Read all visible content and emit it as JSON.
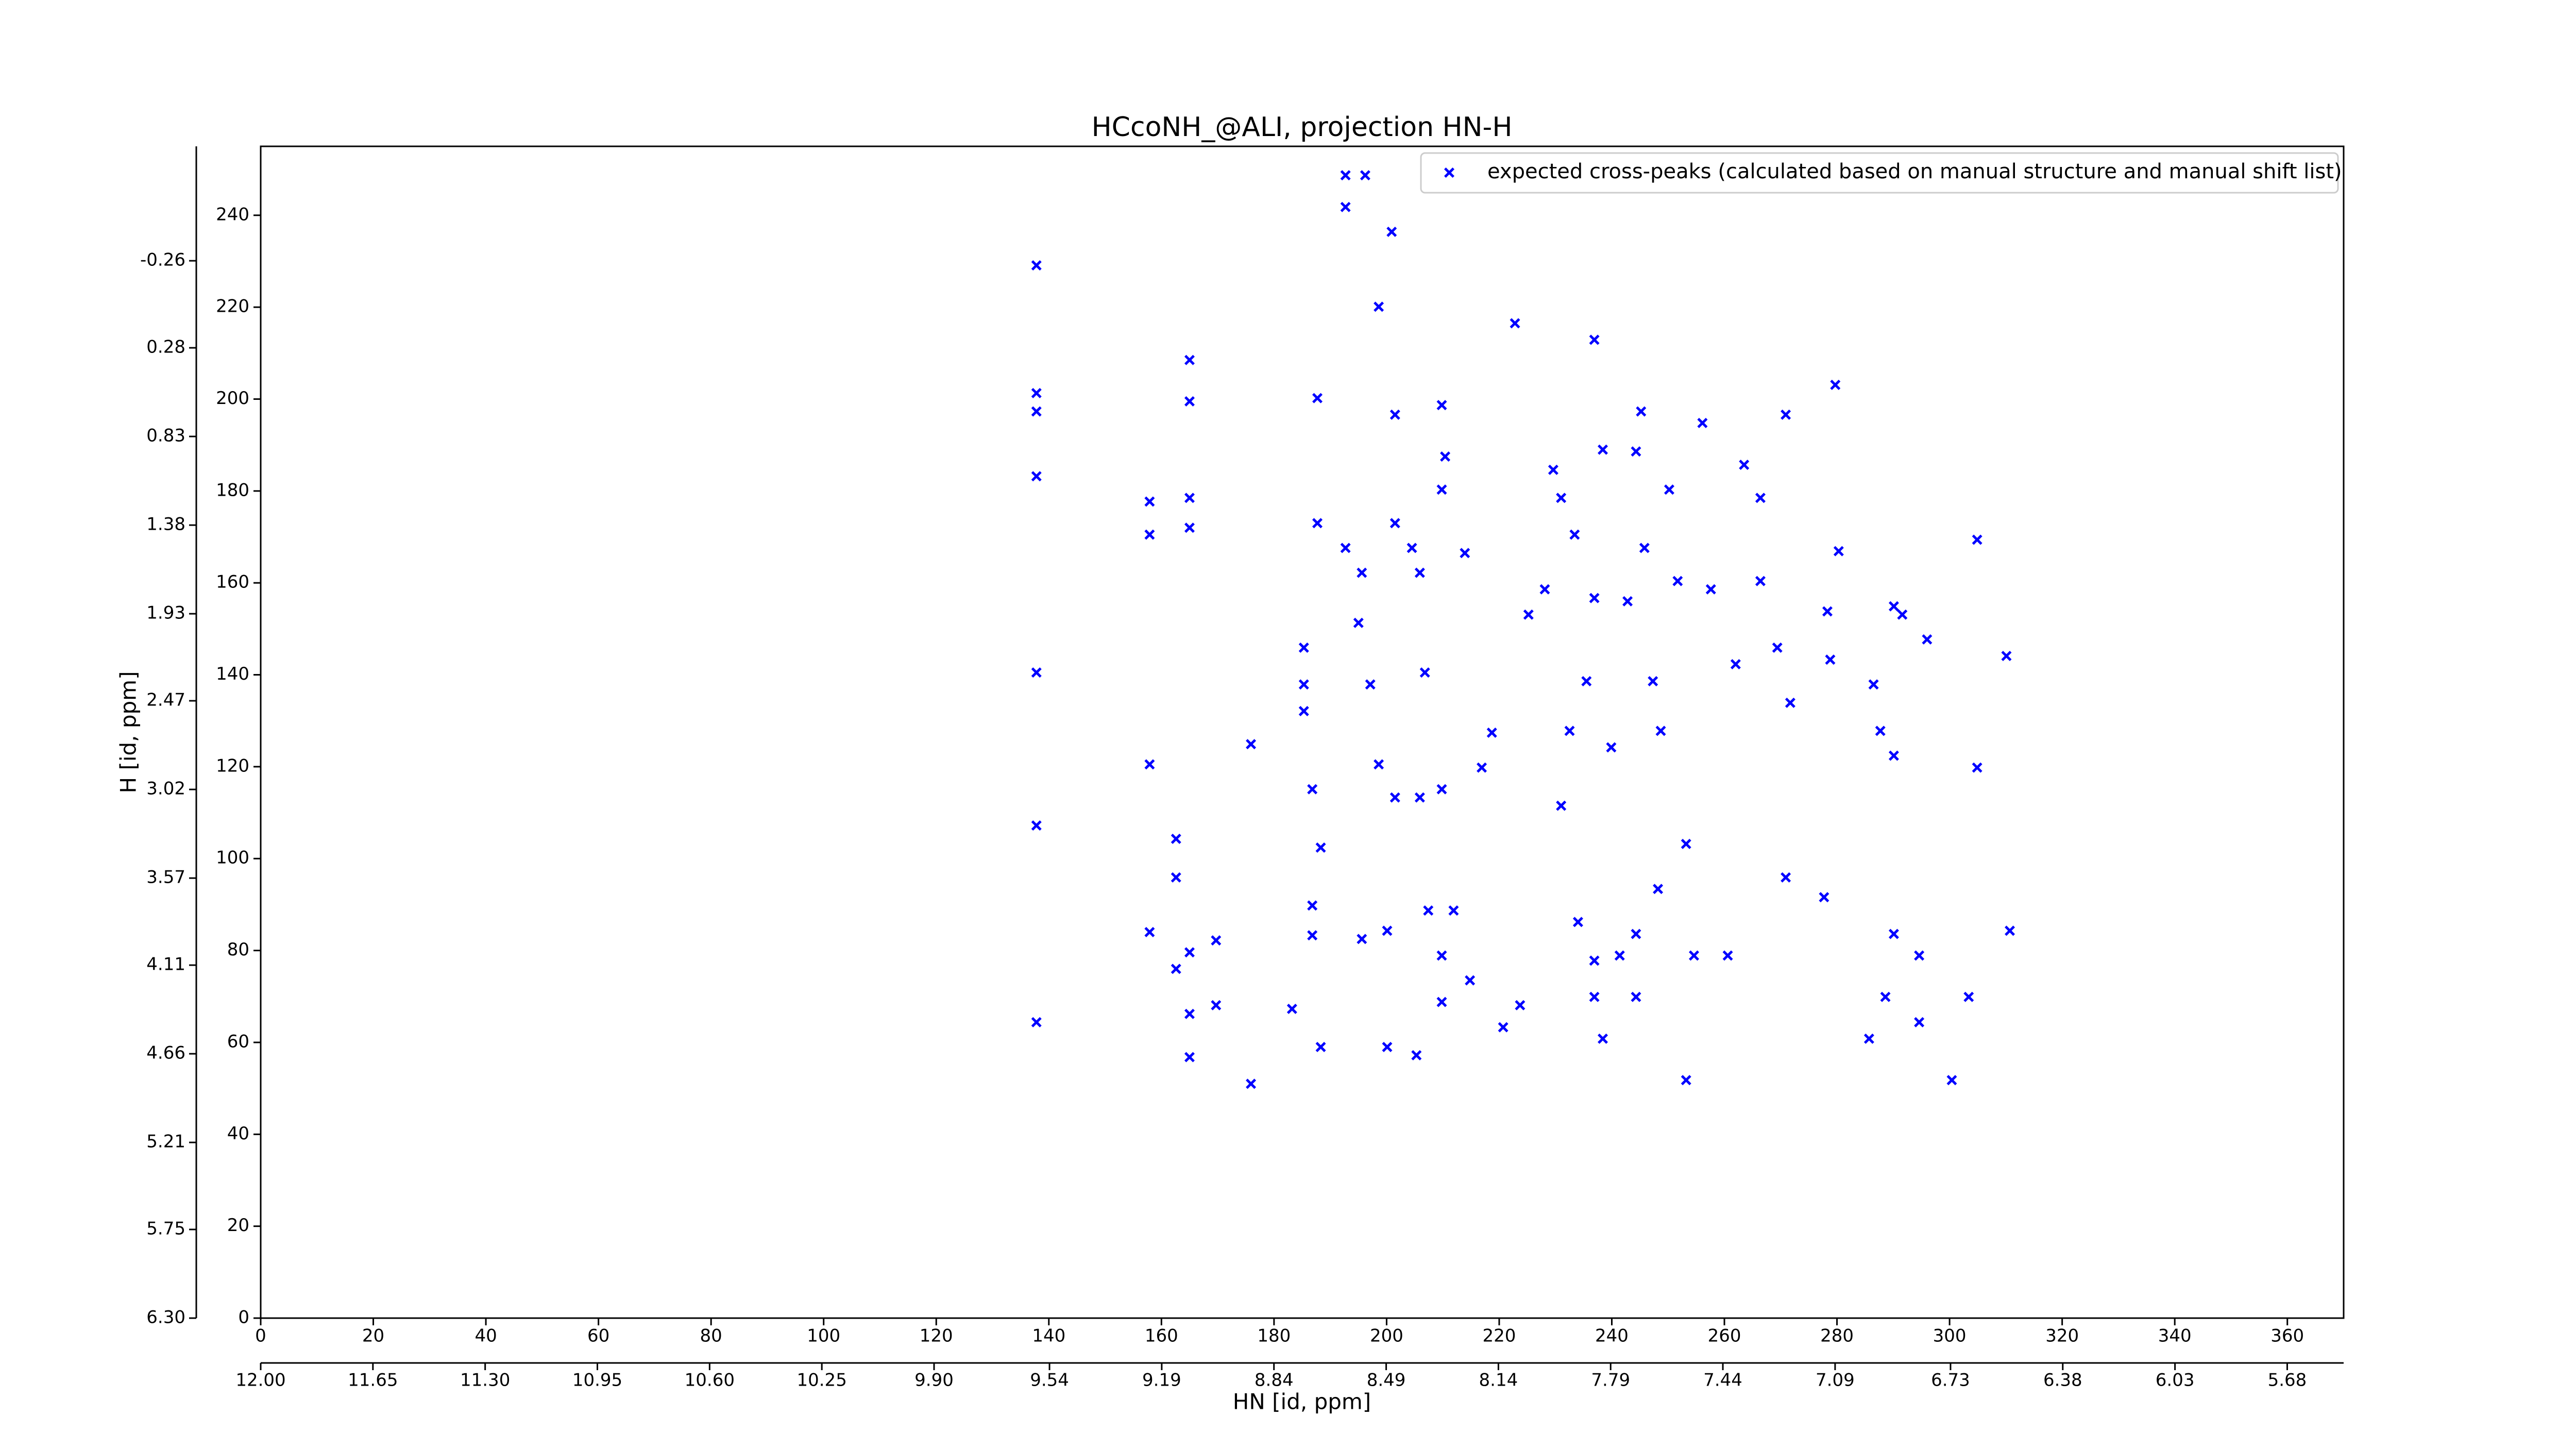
{
  "chart_data": {
    "type": "scatter",
    "title": "HCcoNH_@ALI, projection HN-H",
    "xlabel": "HN [id, ppm]",
    "ylabel": "H [id, ppm]",
    "xlim": [
      0,
      370
    ],
    "ylim": [
      0,
      255
    ],
    "xticks": [
      0,
      20,
      40,
      60,
      80,
      100,
      120,
      140,
      160,
      180,
      200,
      220,
      240,
      260,
      280,
      300,
      320,
      340,
      360
    ],
    "yticks": [
      0,
      20,
      40,
      60,
      80,
      100,
      120,
      140,
      160,
      180,
      200,
      220,
      240
    ],
    "x2lim": [
      12,
      5.504
    ],
    "x2ticks": [
      {
        "value": 12,
        "label": "12.00"
      },
      11.65,
      {
        "value": 11.3,
        "label": "11.30"
      },
      10.95,
      {
        "value": 10.6,
        "label": "10.60"
      },
      10.25,
      {
        "value": 9.9,
        "label": "9.90"
      },
      9.54,
      9.19,
      8.84,
      8.49,
      8.14,
      7.79,
      7.44,
      7.09,
      6.73,
      6.38,
      6.03,
      5.68
    ],
    "y2lim": [
      6.3,
      -0.97
    ],
    "y2ticks": [
      {
        "value": 6.3,
        "label": "6.30"
      },
      5.75,
      5.21,
      4.66,
      4.11,
      3.57,
      3.02,
      2.47,
      1.93,
      1.38,
      0.83,
      0.28,
      -0.26
    ],
    "grid": false,
    "legend": "upper right",
    "series": [
      {
        "name": "expected cross-peaks (calculated based on manual structure and manual shift list)",
        "color": "#0000ff",
        "x": [
          137.8,
          137.8,
          137.8,
          137.8,
          137.8,
          137.8,
          137.8,
          157.9,
          157.9,
          157.9,
          157.9,
          162.6,
          162.6,
          162.6,
          165.0,
          165.0,
          165.0,
          165.0,
          165.0,
          165.0,
          165.0,
          169.7,
          169.7,
          175.9,
          175.9,
          183.2,
          185.3,
          185.3,
          185.3,
          186.8,
          186.8,
          186.8,
          187.7,
          187.7,
          188.3,
          188.3,
          192.7,
          192.7,
          192.7,
          195.0,
          195.6,
          195.6,
          196.2,
          197.1,
          198.6,
          198.6,
          200.1,
          200.9,
          201.5,
          201.5,
          201.5,
          204.5,
          205.9,
          205.9,
          206.8,
          207.4,
          209.8,
          209.8,
          209.8,
          209.8,
          209.8,
          210.4,
          211.9,
          213.9,
          214.8,
          216.9,
          218.7,
          222.8,
          223.7,
          225.2,
          228.1,
          229.6,
          231.0,
          232.5,
          233.4,
          234.0,
          235.5,
          236.9,
          236.9,
          238.4,
          239.9,
          241.4,
          242.8,
          244.3,
          245.2,
          245.8,
          247.3,
          248.2,
          248.7,
          250.2,
          251.7,
          253.2,
          253.2,
          254.6,
          256.1,
          257.6,
          260.6,
          262.0,
          263.5,
          266.4,
          266.4,
          269.4,
          270.9,
          270.9,
          271.7,
          277.7,
          278.3,
          278.8,
          279.7,
          280.3,
          285.7,
          286.5,
          287.7,
          288.6,
          290.1,
          290.1,
          290.1,
          291.6,
          294.6,
          294.6,
          296.0,
          300.4,
          303.4,
          304.9,
          304.9,
          310.1,
          310.7,
          205.3,
          200.1,
          220.7,
          236.9,
          244.3,
          236.9,
          244.3,
          238.4,
          231.0
        ],
        "values": [
          229.1,
          201.3,
          197.3,
          183.2,
          140.5,
          107.2,
          64.4,
          177.7,
          170.5,
          120.5,
          84.0,
          104.3,
          95.9,
          76.0,
          208.5,
          199.5,
          178.5,
          172.0,
          79.6,
          66.2,
          56.8,
          82.2,
          68.1,
          124.9,
          51.0,
          67.3,
          145.9,
          137.9,
          132.1,
          115.1,
          89.8,
          83.3,
          200.2,
          173.0,
          102.4,
          59.0,
          248.7,
          241.8,
          167.6,
          151.3,
          162.2,
          82.5,
          248.7,
          137.9,
          220.1,
          120.5,
          84.3,
          236.4,
          196.6,
          173.0,
          113.3,
          167.6,
          162.2,
          113.3,
          140.5,
          88.7,
          198.7,
          180.3,
          115.1,
          78.9,
          68.8,
          187.5,
          88.7,
          166.5,
          73.5,
          119.8,
          127.4,
          216.5,
          68.1,
          153.1,
          158.6,
          184.6,
          111.5,
          127.8,
          170.5,
          86.2,
          138.6,
          212.9,
          156.7,
          60.8,
          124.2,
          78.9,
          156.0,
          188.6,
          197.3,
          167.6,
          138.6,
          93.4,
          127.8,
          180.3,
          160.4,
          103.2,
          51.8,
          78.9,
          194.8,
          158.6,
          78.9,
          142.3,
          185.7,
          178.5,
          160.4,
          145.9,
          196.6,
          95.9,
          133.9,
          91.6,
          153.8,
          143.3,
          203.1,
          166.9,
          60.8,
          137.9,
          127.8,
          69.9,
          122.4,
          83.6,
          154.9,
          153.1,
          78.9,
          64.4,
          147.7,
          51.8,
          69.9,
          169.4,
          119.8,
          144.1,
          84.3,
          57.2,
          59.0,
          63.3,
          69.9,
          69.9,
          77.8,
          83.6,
          189.0,
          178.5
        ]
      }
    ]
  }
}
